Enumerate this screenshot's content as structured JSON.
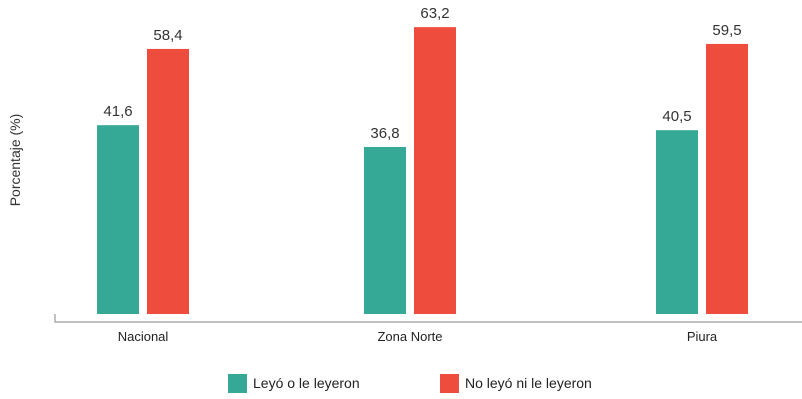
{
  "chart_data": {
    "type": "bar",
    "categories": [
      "Nacional",
      "Zona Norte",
      "Piura"
    ],
    "series": [
      {
        "name": "Leyó o le leyeron",
        "values": [
          41.6,
          36.8,
          40.5
        ],
        "labels": [
          "41,6",
          "36,8",
          "40,5"
        ],
        "color": "#35a896"
      },
      {
        "name": "No leyó ni le leyeron",
        "values": [
          58.4,
          63.2,
          59.5
        ],
        "labels": [
          "58,4",
          "63,2",
          "59,5"
        ],
        "color": "#ee4c3c"
      }
    ],
    "ylabel": "Porcentaje (%)",
    "ylim": [
      0,
      66
    ],
    "grid": false,
    "legend_position": "bottom-center"
  }
}
